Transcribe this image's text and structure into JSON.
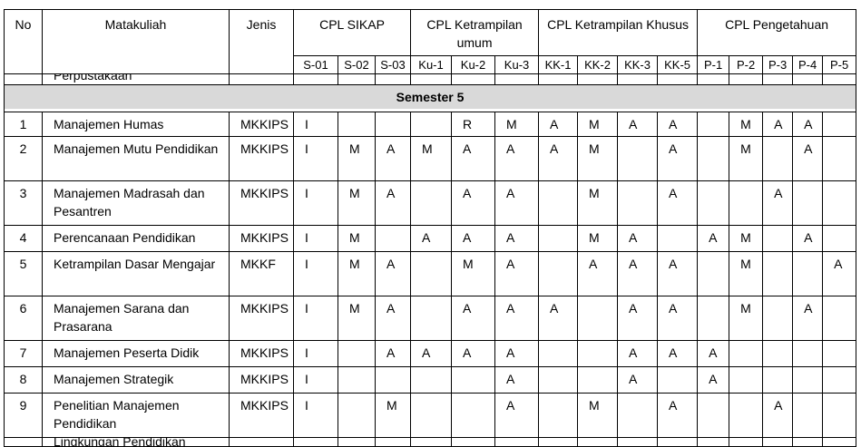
{
  "header": {
    "no": "No",
    "matakuliah": "Matakuliah",
    "jenis": "Jenis",
    "groups": [
      {
        "label": "CPL SIKAP",
        "codes": [
          "S-01",
          "S-02",
          "S-03"
        ]
      },
      {
        "label": "CPL Ketrampilan umum",
        "codes": [
          "Ku-1",
          "Ku-2",
          "Ku-3"
        ]
      },
      {
        "label": "CPL Ketrampilan Khusus",
        "codes": [
          "KK-1",
          "KK-2",
          "KK-3",
          "KK-5"
        ]
      },
      {
        "label": "CPL Pengetahuan",
        "codes": [
          "P-1",
          "P-2",
          "P-3",
          "P-4",
          "P-5"
        ]
      }
    ]
  },
  "partial_top": "Perpustakaan",
  "section": "Semester 5",
  "rows": [
    [
      "1",
      "Manajemen Humas",
      "MKKIPS",
      "I",
      null,
      null,
      null,
      "R",
      "M",
      "A",
      "M",
      "A",
      "A",
      null,
      "M",
      "A",
      "A",
      null
    ],
    [
      "2",
      "Manajemen Mutu Pendidikan",
      "MKKIPS",
      "I",
      "M",
      "A",
      "M",
      "A",
      "A",
      "A",
      "M",
      null,
      "A",
      null,
      "M",
      null,
      "A",
      null
    ],
    [
      "3",
      "Manajemen Madrasah dan Pesantren",
      "MKKIPS",
      "I",
      "M",
      "A",
      null,
      "A",
      "A",
      null,
      "M",
      null,
      "A",
      null,
      null,
      "A",
      null,
      null
    ],
    [
      "4",
      "Perencanaan Pendidikan",
      "MKKIPS",
      "I",
      "M",
      null,
      "A",
      "A",
      "A",
      null,
      "M",
      "A",
      null,
      "A",
      "M",
      null,
      "A",
      null
    ],
    [
      "5",
      "Ketrampilan Dasar Mengajar",
      "MKKF",
      "I",
      "M",
      "A",
      null,
      "M",
      "A",
      null,
      "A",
      "A",
      "A",
      null,
      "M",
      null,
      null,
      "A"
    ],
    [
      "6",
      "Manajemen Sarana dan Prasarana",
      "MKKIPS",
      "I",
      "M",
      "A",
      null,
      "A",
      "A",
      "A",
      null,
      "A",
      "A",
      null,
      "M",
      null,
      "A",
      null
    ],
    [
      "7",
      "Manajemen Peserta Didik",
      "MKKIPS",
      "I",
      null,
      "A",
      "A",
      "A",
      "A",
      null,
      null,
      "A",
      "A",
      "A",
      null,
      null,
      null,
      null
    ],
    [
      "8",
      "Manajemen Strategik",
      "MKKIPS",
      "I",
      null,
      null,
      null,
      null,
      "A",
      null,
      null,
      "A",
      null,
      "A",
      null,
      null,
      null,
      null
    ],
    [
      "9",
      "Penelitian Manajemen Pendidikan",
      "MKKIPS",
      "I",
      null,
      "M",
      null,
      null,
      "A",
      null,
      "M",
      null,
      "A",
      null,
      null,
      "A",
      null,
      null
    ]
  ],
  "partial_bottom": "Lingkungan Pendidikan"
}
